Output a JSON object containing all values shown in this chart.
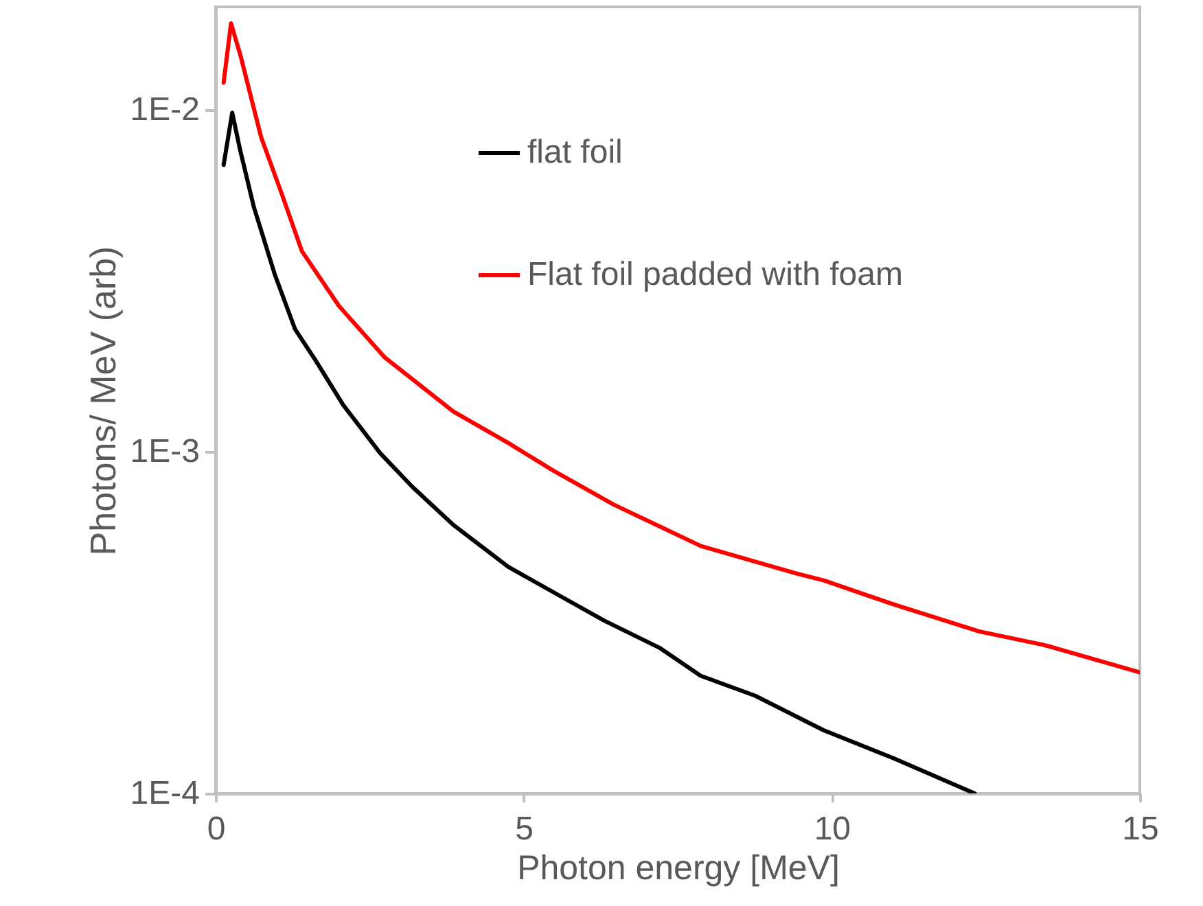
{
  "chart_data": {
    "type": "line",
    "xlabel": "Photon energy [MeV]",
    "ylabel": "Photons/ MeV (arb)",
    "xlim": [
      0,
      15
    ],
    "xticks": [
      0,
      5,
      10,
      15
    ],
    "ylim": [
      0.0001,
      0.02
    ],
    "yticks": [
      {
        "value": 0.01,
        "label": "1E-2"
      },
      {
        "value": 0.001,
        "label": "1E-3"
      },
      {
        "value": 0.0001,
        "label": "1E-4"
      }
    ],
    "log": "y",
    "grid": false,
    "legend": "top right",
    "marker": "none",
    "line_style": "solid",
    "series": [
      {
        "name": "flat foil",
        "color": "#000000",
        "x": [
          0.13,
          0.27,
          0.4,
          0.62,
          0.96,
          1.29,
          1.63,
          2.07,
          2.67,
          3.19,
          3.86,
          4.75,
          5.57,
          6.31,
          7.2,
          7.87,
          8.76,
          9.87,
          10.99,
          12.32
        ],
        "values": [
          0.0069,
          0.0098,
          0.0076,
          0.0052,
          0.0033,
          0.00228,
          0.00184,
          0.00137,
          0.00099,
          0.00079,
          0.00061,
          0.00046,
          0.00038,
          0.00032,
          0.000267,
          0.000221,
          0.000193,
          0.000153,
          0.000127,
          0.0001
        ]
      },
      {
        "name": "Flat foil padded with foam",
        "color": "#ff0000",
        "x": [
          0.13,
          0.25,
          0.4,
          0.74,
          1.07,
          1.4,
          2.0,
          2.74,
          3.86,
          4.75,
          5.48,
          6.46,
          7.87,
          9.43,
          9.87,
          10.99,
          12.39,
          13.44,
          15.0
        ],
        "values": [
          0.012,
          0.0179,
          0.0145,
          0.0083,
          0.0057,
          0.00386,
          0.00267,
          0.00189,
          0.00131,
          0.00106,
          0.00088,
          0.0007,
          0.00053,
          0.00044,
          0.00042,
          0.000358,
          0.000298,
          0.000272,
          0.000226
        ]
      }
    ]
  }
}
